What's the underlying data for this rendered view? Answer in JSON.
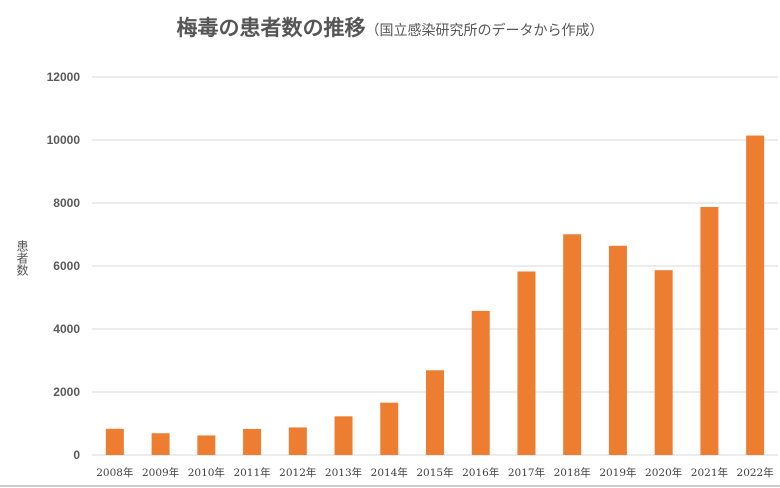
{
  "chart_data": {
    "type": "bar",
    "title": "梅毒の患者数の推移",
    "subtitle": "（国立感染研究所のデータから作成）",
    "xlabel": "",
    "ylabel": "患者数",
    "ylim": [
      0,
      12000
    ],
    "yticks": [
      "0",
      "2000",
      "4000",
      "6000",
      "8000",
      "10000",
      "12000"
    ],
    "grid": true,
    "categories": [
      "2008年",
      "2009年",
      "2010年",
      "2011年",
      "2012年",
      "2013年",
      "2014年",
      "2015年",
      "2016年",
      "2017年",
      "2018年",
      "2019年",
      "2020年",
      "2021年",
      "2022年"
    ],
    "values": [
      831,
      691,
      621,
      827,
      875,
      1228,
      1661,
      2690,
      4575,
      5826,
      7007,
      6642,
      5867,
      7873,
      10141
    ],
    "color": "#ED7D31"
  }
}
